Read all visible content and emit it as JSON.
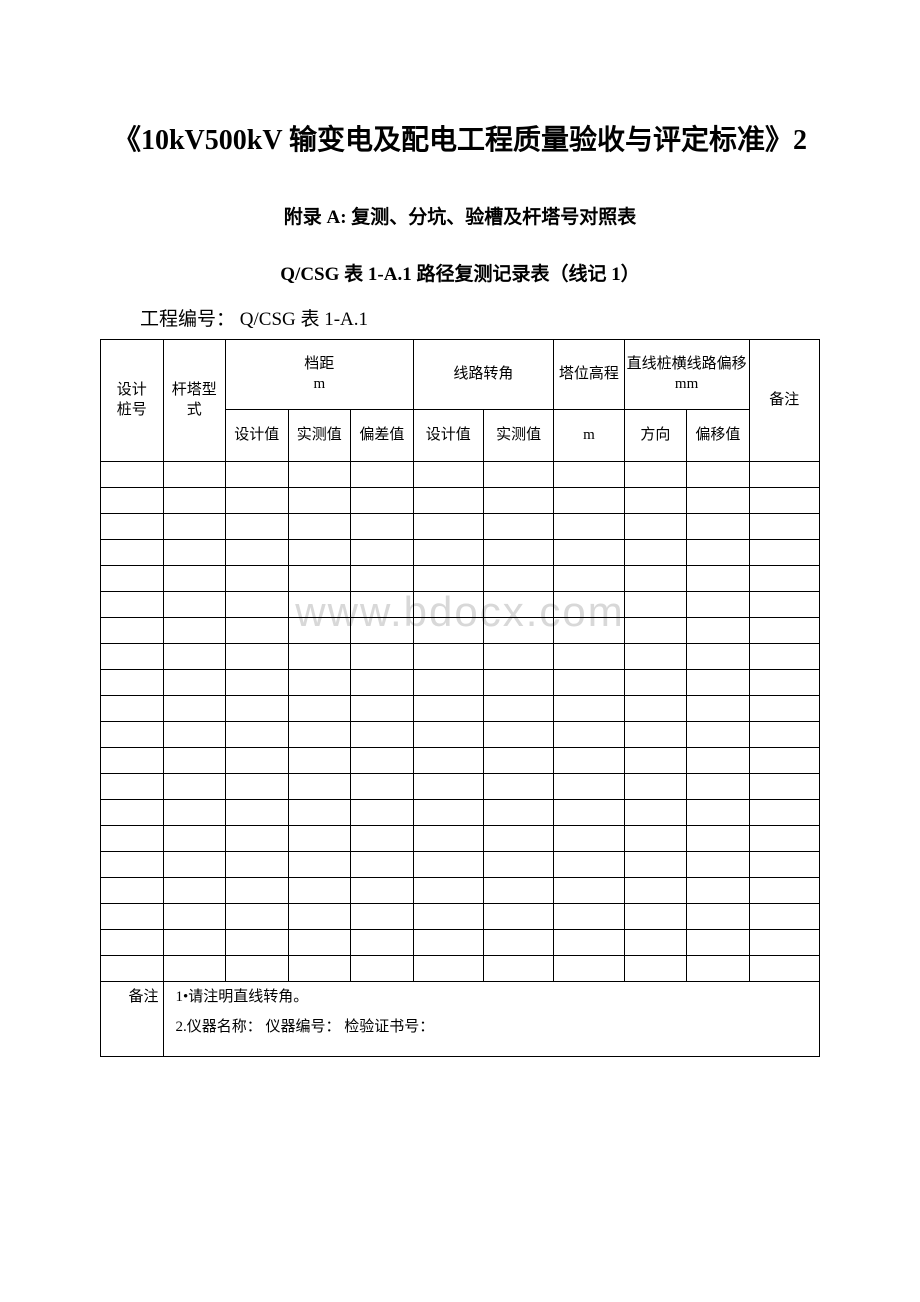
{
  "title": "《10kV500kV 输变电及配电工程质量验收与评定标准》2",
  "appendix": "附录 A: 复测、分坑、验槽及杆塔号对照表",
  "table_name": "Q/CSG 表 1-A.1 路径复测记录表（线记 1）",
  "project_number_label": "工程编号：",
  "project_number_value": "Q/CSG 表 1-A.1",
  "watermark": "www.bdocx.com",
  "headers": {
    "col1": "设计\n桩号",
    "col2": "杆塔型式",
    "span_distance": "档距\nm",
    "sub_design": "设计值",
    "sub_measured": "实测值",
    "sub_diff": "偏差值",
    "turn_angle": "线路转角",
    "tower_elev": "塔位高程",
    "sub_m": "m",
    "offset": "直线桩横线路偏移\nmm",
    "sub_dir": "方向",
    "sub_offset": "偏移值",
    "remark": "备注"
  },
  "note_label": "备注",
  "note_line1": "1•请注明直线转角。",
  "note_line2": "2.仪器名称： 仪器编号： 检验证书号：",
  "data_row_count": 20,
  "colors": {
    "text": "#000000",
    "background": "#ffffff",
    "border": "#000000",
    "watermark": "#d8d8d8"
  }
}
